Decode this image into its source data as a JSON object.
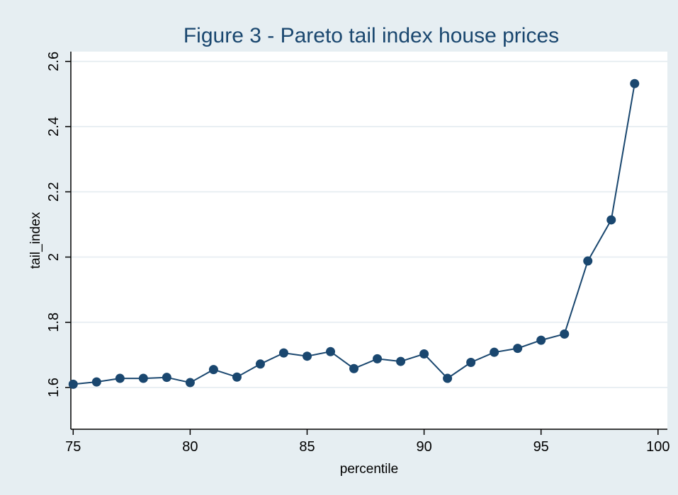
{
  "chart_data": {
    "type": "line",
    "title": "Figure 3 - Pareto tail index house prices",
    "xlabel": "percentile",
    "ylabel": "tail_index",
    "xlim": [
      74.9,
      100.4
    ],
    "ylim": [
      1.472,
      2.63
    ],
    "xticks": [
      75,
      80,
      85,
      90,
      95,
      100
    ],
    "yticks": [
      1.6,
      1.8,
      2,
      2.2,
      2.4,
      2.6
    ],
    "xtick_labels": [
      "75",
      "80",
      "85",
      "90",
      "95",
      "100"
    ],
    "ytick_labels": [
      "1.6",
      "1.8",
      "2",
      "2.2",
      "2.4",
      "2.6"
    ],
    "grid": true,
    "series": [
      {
        "x": [
          75,
          76,
          77,
          78,
          79,
          80,
          81,
          82,
          83,
          84,
          85,
          86,
          87,
          88,
          89,
          90,
          91,
          92,
          93,
          94,
          95,
          96,
          97,
          98,
          99
        ],
        "y": [
          1.61,
          1.617,
          1.628,
          1.628,
          1.631,
          1.615,
          1.655,
          1.632,
          1.672,
          1.706,
          1.696,
          1.71,
          1.658,
          1.688,
          1.68,
          1.703,
          1.628,
          1.677,
          1.708,
          1.72,
          1.745,
          1.764,
          1.988,
          2.114,
          2.532
        ]
      }
    ]
  },
  "colors": {
    "background": "#e6eef2",
    "plot_background": "#ffffff",
    "grid": "#e9eff3",
    "series": "#1a476f",
    "title": "#1a476f",
    "axis": "#000000"
  }
}
